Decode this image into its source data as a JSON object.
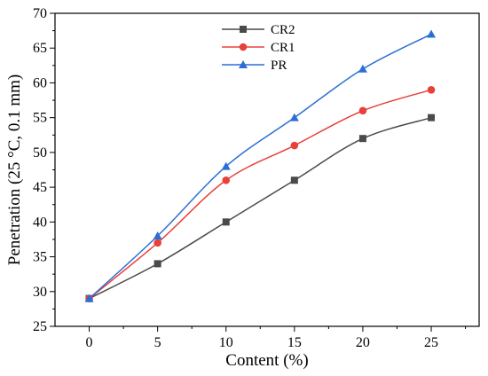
{
  "chart_data": {
    "type": "line",
    "xlabel": "Content (%)",
    "ylabel": "Penetration (25 °C, 0.1 mm)",
    "xlim": [
      -2.5,
      28.5
    ],
    "ylim": [
      25,
      70
    ],
    "x_ticks": [
      0,
      5,
      10,
      15,
      20,
      25
    ],
    "y_ticks": [
      25,
      30,
      35,
      40,
      45,
      50,
      55,
      60,
      65,
      70
    ],
    "x": [
      0,
      5,
      10,
      15,
      20,
      25
    ],
    "grid": false,
    "legend_position": "top-center",
    "series": [
      {
        "name": "CR2",
        "color": "#4a4a4a",
        "marker": "square",
        "values": [
          29,
          34,
          40,
          46,
          52,
          55
        ]
      },
      {
        "name": "CR1",
        "color": "#e8403a",
        "marker": "circle",
        "values": [
          29,
          37,
          46,
          51,
          56,
          59
        ]
      },
      {
        "name": "PR",
        "color": "#2b6fd6",
        "marker": "triangle",
        "values": [
          29,
          38,
          48,
          55,
          62,
          67
        ]
      }
    ]
  }
}
